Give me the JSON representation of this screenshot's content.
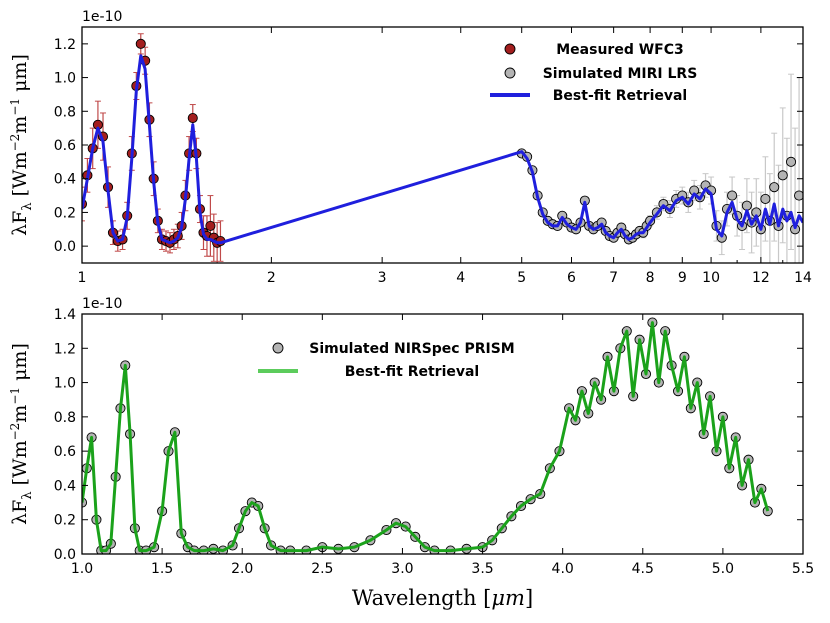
{
  "chart_data": [
    {
      "type": "scatter",
      "multiplier_label": "1e-10",
      "ylabel": "λF",
      "ylabel_sub": "λ",
      "ylabel_units": "[Wm",
      "ylabel_exp1": "−2",
      "ylabel_mid": "m",
      "ylabel_exp2": "−1",
      "ylabel_end": "μm]",
      "xlabel": "",
      "xlim": [
        1.0,
        14.0
      ],
      "ylim": [
        -0.1,
        1.3
      ],
      "xscale": "log",
      "xticks": [
        1,
        2,
        3,
        4,
        5,
        6,
        7,
        8,
        9,
        10,
        12,
        14
      ],
      "xtick_labels": [
        "1",
        "2",
        "3",
        "4",
        "5",
        "6",
        "7",
        "8",
        "9",
        "10",
        "12",
        "14"
      ],
      "yticks": [
        0.0,
        0.2,
        0.4,
        0.6,
        0.8,
        1.0,
        1.2
      ],
      "ytick_labels": [
        "0.0",
        "0.2",
        "0.4",
        "0.6",
        "0.8",
        "1.0",
        "1.2"
      ],
      "legend": [
        "Measured WFC3",
        "Simulated MIRI LRS",
        "Best-fit Retrieval"
      ],
      "legend_position": "top-right",
      "series": [
        {
          "name": "Measured WFC3",
          "color": "#a31e1e",
          "error_color": "#c04a4a",
          "x": [
            1.0,
            1.02,
            1.04,
            1.06,
            1.08,
            1.1,
            1.12,
            1.14,
            1.16,
            1.18,
            1.2,
            1.22,
            1.24,
            1.26,
            1.28,
            1.3,
            1.32,
            1.34,
            1.36,
            1.38,
            1.4,
            1.42,
            1.44,
            1.46,
            1.48,
            1.5,
            1.52,
            1.54,
            1.56,
            1.58,
            1.6,
            1.62,
            1.64,
            1.66
          ],
          "y": [
            0.25,
            0.42,
            0.58,
            0.72,
            0.65,
            0.35,
            0.08,
            0.03,
            0.04,
            0.18,
            0.55,
            0.95,
            1.2,
            1.1,
            0.75,
            0.4,
            0.15,
            0.04,
            0.03,
            0.02,
            0.04,
            0.06,
            0.12,
            0.3,
            0.55,
            0.76,
            0.55,
            0.22,
            0.08,
            0.06,
            0.12,
            0.05,
            0.02,
            0.03
          ],
          "err": [
            0.1,
            0.1,
            0.12,
            0.14,
            0.14,
            0.12,
            0.07,
            0.06,
            0.06,
            0.08,
            0.1,
            0.08,
            0.06,
            0.08,
            0.1,
            0.1,
            0.07,
            0.06,
            0.06,
            0.06,
            0.06,
            0.07,
            0.08,
            0.09,
            0.1,
            0.08,
            0.09,
            0.08,
            0.1,
            0.12,
            0.18,
            0.14,
            0.12,
            0.12
          ]
        },
        {
          "name": "Simulated MIRI LRS",
          "color": "#b4b4b4",
          "error_color": "#c8c8c8",
          "x": [
            5.0,
            5.1,
            5.2,
            5.3,
            5.4,
            5.5,
            5.6,
            5.7,
            5.8,
            5.9,
            6.0,
            6.1,
            6.2,
            6.3,
            6.4,
            6.5,
            6.6,
            6.7,
            6.8,
            6.9,
            7.0,
            7.1,
            7.2,
            7.3,
            7.4,
            7.5,
            7.6,
            7.7,
            7.8,
            7.9,
            8.0,
            8.2,
            8.4,
            8.6,
            8.8,
            9.0,
            9.2,
            9.4,
            9.6,
            9.8,
            10.0,
            10.2,
            10.4,
            10.6,
            10.8,
            11.0,
            11.2,
            11.4,
            11.6,
            11.8,
            12.0,
            12.2,
            12.4,
            12.6,
            12.8,
            13.0,
            13.2,
            13.4,
            13.6,
            13.8
          ],
          "y": [
            0.55,
            0.53,
            0.45,
            0.3,
            0.2,
            0.15,
            0.13,
            0.12,
            0.18,
            0.14,
            0.11,
            0.1,
            0.14,
            0.27,
            0.12,
            0.1,
            0.12,
            0.14,
            0.09,
            0.06,
            0.05,
            0.08,
            0.11,
            0.07,
            0.04,
            0.05,
            0.07,
            0.09,
            0.08,
            0.12,
            0.15,
            0.2,
            0.25,
            0.22,
            0.28,
            0.3,
            0.26,
            0.33,
            0.29,
            0.36,
            0.33,
            0.12,
            0.05,
            0.22,
            0.3,
            0.18,
            0.12,
            0.24,
            0.14,
            0.2,
            0.1,
            0.28,
            0.15,
            0.35,
            0.12,
            0.42,
            0.18,
            0.5,
            0.1,
            0.3
          ],
          "err": [
            0.01,
            0.01,
            0.01,
            0.01,
            0.01,
            0.01,
            0.01,
            0.01,
            0.01,
            0.01,
            0.01,
            0.01,
            0.01,
            0.01,
            0.01,
            0.01,
            0.01,
            0.01,
            0.02,
            0.02,
            0.02,
            0.02,
            0.02,
            0.02,
            0.02,
            0.02,
            0.02,
            0.02,
            0.03,
            0.03,
            0.03,
            0.04,
            0.04,
            0.05,
            0.05,
            0.05,
            0.06,
            0.06,
            0.07,
            0.07,
            0.08,
            0.09,
            0.1,
            0.1,
            0.11,
            0.12,
            0.14,
            0.16,
            0.18,
            0.2,
            0.22,
            0.25,
            0.28,
            0.32,
            0.36,
            0.4,
            0.46,
            0.52,
            0.6,
            0.7
          ]
        },
        {
          "name": "Best-fit Retrieval",
          "color": "#1f1fdd",
          "style": "line",
          "x": [
            1.0,
            1.02,
            1.04,
            1.06,
            1.08,
            1.1,
            1.12,
            1.14,
            1.16,
            1.18,
            1.2,
            1.22,
            1.24,
            1.26,
            1.28,
            1.3,
            1.32,
            1.34,
            1.36,
            1.38,
            1.4,
            1.42,
            1.44,
            1.46,
            1.48,
            1.5,
            1.52,
            1.54,
            1.56,
            1.58,
            1.6,
            1.62,
            1.64,
            1.66,
            5.0,
            5.1,
            5.2,
            5.3,
            5.4,
            5.5,
            5.6,
            5.7,
            5.8,
            5.9,
            6.0,
            6.1,
            6.2,
            6.3,
            6.4,
            6.5,
            6.6,
            6.7,
            6.8,
            6.9,
            7.0,
            7.1,
            7.2,
            7.3,
            7.4,
            7.5,
            7.6,
            7.7,
            7.8,
            7.9,
            8.0,
            8.2,
            8.4,
            8.6,
            8.8,
            9.0,
            9.2,
            9.4,
            9.6,
            9.8,
            10.0,
            10.2,
            10.4,
            10.6,
            10.8,
            11.0,
            11.2,
            11.4,
            11.6,
            11.8,
            12.0,
            12.2,
            12.4,
            12.6,
            12.8,
            13.0,
            13.2,
            13.4,
            13.6,
            13.8,
            14.0
          ],
          "y": [
            0.22,
            0.4,
            0.58,
            0.7,
            0.62,
            0.33,
            0.08,
            0.03,
            0.04,
            0.17,
            0.52,
            0.92,
            1.13,
            1.05,
            0.72,
            0.38,
            0.14,
            0.04,
            0.03,
            0.02,
            0.03,
            0.05,
            0.11,
            0.28,
            0.52,
            0.72,
            0.52,
            0.2,
            0.07,
            0.04,
            0.04,
            0.03,
            0.02,
            0.02,
            0.56,
            0.52,
            0.44,
            0.29,
            0.19,
            0.14,
            0.12,
            0.12,
            0.17,
            0.13,
            0.11,
            0.1,
            0.14,
            0.26,
            0.12,
            0.1,
            0.11,
            0.13,
            0.08,
            0.06,
            0.05,
            0.08,
            0.1,
            0.06,
            0.04,
            0.05,
            0.07,
            0.08,
            0.08,
            0.11,
            0.14,
            0.19,
            0.24,
            0.21,
            0.27,
            0.29,
            0.25,
            0.31,
            0.28,
            0.34,
            0.31,
            0.1,
            0.06,
            0.2,
            0.26,
            0.16,
            0.12,
            0.21,
            0.13,
            0.18,
            0.1,
            0.22,
            0.13,
            0.25,
            0.12,
            0.22,
            0.15,
            0.2,
            0.11,
            0.18,
            0.14
          ]
        }
      ]
    },
    {
      "type": "scatter",
      "multiplier_label": "1e-10",
      "ylabel": "λF",
      "ylabel_sub": "λ",
      "ylabel_units": "[Wm",
      "ylabel_exp1": "−2",
      "ylabel_mid": "m",
      "ylabel_exp2": "−1",
      "ylabel_end": "μm]",
      "xlabel": "Wavelength [",
      "xlabel_unit": "μm",
      "xlabel_end": "]",
      "xlim": [
        1.0,
        5.5
      ],
      "ylim": [
        0.0,
        1.4
      ],
      "xticks": [
        1.0,
        1.5,
        2.0,
        2.5,
        3.0,
        3.5,
        4.0,
        4.5,
        5.0,
        5.5
      ],
      "xtick_labels": [
        "1.0",
        "1.5",
        "2.0",
        "2.5",
        "3.0",
        "3.5",
        "4.0",
        "4.5",
        "5.0",
        "5.5"
      ],
      "yticks": [
        0.0,
        0.2,
        0.4,
        0.6,
        0.8,
        1.0,
        1.2,
        1.4
      ],
      "ytick_labels": [
        "0.0",
        "0.2",
        "0.4",
        "0.6",
        "0.8",
        "1.0",
        "1.2",
        "1.4"
      ],
      "legend": [
        "Simulated NIRSpec PRISM",
        "Best-fit Retrieval"
      ],
      "legend_position": "top-center",
      "series": [
        {
          "name": "Simulated NIRSpec PRISM",
          "color": "#b4b4b4",
          "x": [
            1.0,
            1.03,
            1.06,
            1.09,
            1.12,
            1.15,
            1.18,
            1.21,
            1.24,
            1.27,
            1.3,
            1.33,
            1.36,
            1.4,
            1.45,
            1.5,
            1.54,
            1.58,
            1.62,
            1.66,
            1.7,
            1.76,
            1.82,
            1.88,
            1.94,
            1.98,
            2.02,
            2.06,
            2.1,
            2.14,
            2.18,
            2.24,
            2.3,
            2.4,
            2.5,
            2.6,
            2.7,
            2.8,
            2.9,
            2.96,
            3.02,
            3.08,
            3.14,
            3.2,
            3.3,
            3.4,
            3.5,
            3.56,
            3.62,
            3.68,
            3.74,
            3.8,
            3.86,
            3.92,
            3.98,
            4.04,
            4.08,
            4.12,
            4.16,
            4.2,
            4.24,
            4.28,
            4.32,
            4.36,
            4.4,
            4.44,
            4.48,
            4.52,
            4.56,
            4.6,
            4.64,
            4.68,
            4.72,
            4.76,
            4.8,
            4.84,
            4.88,
            4.92,
            4.96,
            5.0,
            5.04,
            5.08,
            5.12,
            5.16,
            5.2,
            5.24,
            5.28
          ],
          "y": [
            0.3,
            0.5,
            0.68,
            0.2,
            0.02,
            0.02,
            0.06,
            0.45,
            0.85,
            1.1,
            0.7,
            0.15,
            0.02,
            0.02,
            0.04,
            0.25,
            0.6,
            0.71,
            0.12,
            0.04,
            0.02,
            0.02,
            0.03,
            0.02,
            0.05,
            0.15,
            0.25,
            0.3,
            0.28,
            0.15,
            0.05,
            0.02,
            0.02,
            0.02,
            0.04,
            0.03,
            0.04,
            0.08,
            0.14,
            0.18,
            0.16,
            0.1,
            0.04,
            0.02,
            0.02,
            0.03,
            0.04,
            0.08,
            0.15,
            0.22,
            0.28,
            0.32,
            0.35,
            0.5,
            0.6,
            0.85,
            0.78,
            0.95,
            0.82,
            1.0,
            0.9,
            1.15,
            0.95,
            1.2,
            1.3,
            0.92,
            1.25,
            1.05,
            1.35,
            1.0,
            1.3,
            1.1,
            0.95,
            1.15,
            0.85,
            1.0,
            0.7,
            0.92,
            0.6,
            0.8,
            0.5,
            0.68,
            0.4,
            0.55,
            0.3,
            0.38,
            0.25
          ]
        },
        {
          "name": "Best-fit Retrieval",
          "color": "#1ba21b",
          "legend_color": "#5ccc5c",
          "style": "line",
          "x": [
            1.0,
            1.03,
            1.06,
            1.09,
            1.12,
            1.15,
            1.18,
            1.21,
            1.24,
            1.27,
            1.3,
            1.33,
            1.36,
            1.4,
            1.45,
            1.5,
            1.54,
            1.58,
            1.62,
            1.66,
            1.7,
            1.76,
            1.82,
            1.88,
            1.94,
            1.98,
            2.02,
            2.06,
            2.1,
            2.14,
            2.18,
            2.24,
            2.3,
            2.4,
            2.5,
            2.6,
            2.7,
            2.8,
            2.9,
            2.96,
            3.02,
            3.08,
            3.14,
            3.2,
            3.3,
            3.4,
            3.5,
            3.56,
            3.62,
            3.68,
            3.74,
            3.8,
            3.86,
            3.92,
            3.98,
            4.04,
            4.08,
            4.12,
            4.16,
            4.2,
            4.24,
            4.28,
            4.32,
            4.36,
            4.4,
            4.44,
            4.48,
            4.52,
            4.56,
            4.6,
            4.64,
            4.68,
            4.72,
            4.76,
            4.8,
            4.84,
            4.88,
            4.92,
            4.96,
            5.0,
            5.04,
            5.08,
            5.12,
            5.16,
            5.2,
            5.24,
            5.28
          ],
          "y": [
            0.3,
            0.5,
            0.68,
            0.2,
            0.02,
            0.02,
            0.06,
            0.45,
            0.85,
            1.1,
            0.7,
            0.15,
            0.02,
            0.02,
            0.04,
            0.25,
            0.6,
            0.71,
            0.12,
            0.04,
            0.02,
            0.02,
            0.03,
            0.02,
            0.05,
            0.15,
            0.25,
            0.3,
            0.28,
            0.15,
            0.05,
            0.02,
            0.02,
            0.02,
            0.04,
            0.03,
            0.04,
            0.08,
            0.14,
            0.18,
            0.16,
            0.1,
            0.04,
            0.02,
            0.02,
            0.03,
            0.04,
            0.08,
            0.15,
            0.22,
            0.28,
            0.32,
            0.35,
            0.5,
            0.6,
            0.85,
            0.78,
            0.95,
            0.82,
            1.0,
            0.9,
            1.15,
            0.95,
            1.2,
            1.3,
            0.92,
            1.25,
            1.05,
            1.35,
            1.0,
            1.3,
            1.1,
            0.95,
            1.15,
            0.85,
            1.0,
            0.7,
            0.92,
            0.6,
            0.8,
            0.5,
            0.68,
            0.4,
            0.55,
            0.3,
            0.38,
            0.25
          ]
        }
      ]
    }
  ]
}
